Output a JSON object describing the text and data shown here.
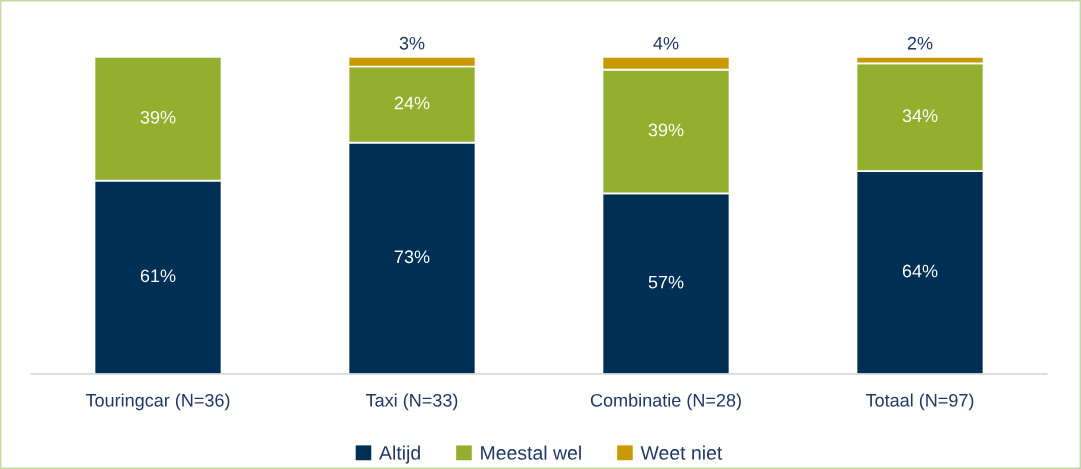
{
  "chart_data": {
    "type": "bar",
    "stacked": true,
    "categories": [
      "Touringcar (N=36)",
      "Taxi (N=33)",
      "Combinatie (N=28)",
      "Totaal (N=97)"
    ],
    "series": [
      {
        "name": "Altijd",
        "color": "#002f56",
        "values": [
          61,
          73,
          57,
          64
        ],
        "value_labels": [
          "61%",
          "73%",
          "57%",
          "64%"
        ]
      },
      {
        "name": "Meestal wel",
        "color": "#94ae2e",
        "values": [
          39,
          24,
          39,
          34
        ],
        "value_labels": [
          "39%",
          "24%",
          "39%",
          "34%"
        ]
      },
      {
        "name": "Weet niet",
        "color": "#c89a00",
        "values": [
          0,
          3,
          4,
          2
        ],
        "value_labels": [
          null,
          "3%",
          "4%",
          "2%"
        ]
      }
    ],
    "ylim": [
      0,
      100
    ],
    "legend": "bottom",
    "grid": false
  }
}
